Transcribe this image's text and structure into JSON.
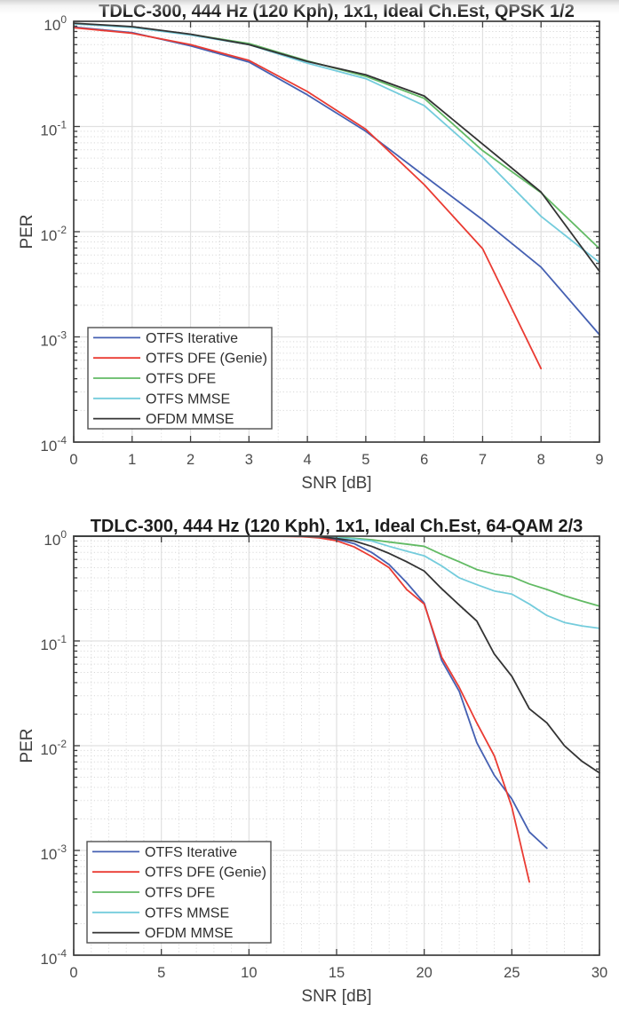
{
  "page": {
    "background": "#ffffff",
    "top_shade_color": "#c6c6c6"
  },
  "style": {
    "axis_color": "#3e3e3e",
    "grid_major_color": "#e0e0e0",
    "grid_minor_color": "#d9d9d9",
    "tick_label_color": "#4b4b4b",
    "axis_label_color": "#3f3f3f",
    "title_color": "#1c1c1c",
    "legend_border_color": "#4f4f4f",
    "legend_text_color": "#2e2e2e",
    "legend_background": "#ffffff"
  },
  "chart_data": [
    {
      "type": "line",
      "title": "TDLC-300, 444 Hz (120 Kph), 1x1, Ideal Ch.Est, QPSK 1/2",
      "xlabel": "SNR [dB]",
      "ylabel": "PER",
      "x_range": [
        0,
        9
      ],
      "x_ticks": [
        0,
        1,
        2,
        3,
        4,
        5,
        6,
        7,
        8,
        9
      ],
      "x_tick_labels": [
        "0",
        "1",
        "2",
        "3",
        "4",
        "5",
        "6",
        "7",
        "8",
        "9"
      ],
      "x_minor_step": 0.5,
      "y_scale": "log",
      "y_range": [
        0.0001,
        1
      ],
      "y_tick_exponents": [
        0,
        -1,
        -2,
        -3,
        -4
      ],
      "grid": {
        "x_major": true,
        "y_major": true,
        "x_minor": true,
        "y_minor": true
      },
      "legend_position": "bottom-left",
      "series": [
        {
          "name": "OTFS Iterative",
          "color": "#4560b2",
          "x": [
            0,
            1,
            2,
            3,
            4,
            5,
            6,
            7,
            8,
            9
          ],
          "y": [
            0.88,
            0.78,
            0.585,
            0.41,
            0.2,
            0.09,
            0.034,
            0.013,
            0.0046,
            0.00105
          ]
        },
        {
          "name": "OTFS DFE (Genie)",
          "color": "#ea3b32",
          "x": [
            0,
            1,
            2,
            3,
            4,
            5,
            6,
            7,
            8
          ],
          "y": [
            0.87,
            0.77,
            0.6,
            0.425,
            0.215,
            0.094,
            0.028,
            0.0069,
            0.0005
          ]
        },
        {
          "name": "OTFS DFE",
          "color": "#62ba64",
          "x": [
            0,
            1,
            2,
            3,
            4,
            5,
            6,
            7,
            8,
            9
          ],
          "y": [
            0.95,
            0.885,
            0.75,
            0.615,
            0.42,
            0.3,
            0.185,
            0.059,
            0.0235,
            0.0069
          ]
        },
        {
          "name": "OTFS MMSE",
          "color": "#74ccdc",
          "x": [
            0,
            1,
            2,
            3,
            4,
            5,
            6,
            7,
            8,
            9
          ],
          "y": [
            0.945,
            0.875,
            0.74,
            0.6,
            0.4,
            0.285,
            0.158,
            0.051,
            0.014,
            0.0051
          ]
        },
        {
          "name": "OFDM MMSE",
          "color": "#333333",
          "x": [
            0,
            1,
            2,
            3,
            4,
            5,
            6,
            7,
            8,
            9
          ],
          "y": [
            0.96,
            0.89,
            0.755,
            0.6,
            0.415,
            0.31,
            0.195,
            0.068,
            0.0238,
            0.0042
          ]
        }
      ]
    },
    {
      "type": "line",
      "title": "TDLC-300, 444 Hz (120 Kph), 1x1, Ideal Ch.Est, 64-QAM 2/3",
      "xlabel": "SNR [dB]",
      "ylabel": "PER",
      "x_range": [
        0,
        30
      ],
      "x_ticks": [
        0,
        5,
        10,
        15,
        20,
        25,
        30
      ],
      "x_tick_labels": [
        "0",
        "5",
        "10",
        "15",
        "20",
        "25",
        "30"
      ],
      "x_minor_step": 1,
      "y_scale": "log",
      "y_range": [
        0.0001,
        1
      ],
      "y_tick_exponents": [
        0,
        -1,
        -2,
        -3,
        -4
      ],
      "grid": {
        "x_major": true,
        "y_major": true,
        "x_minor": true,
        "y_minor": true
      },
      "legend_position": "bottom-left",
      "series": [
        {
          "name": "OTFS Iterative",
          "color": "#4560b2",
          "x": [
            0,
            2,
            4,
            6,
            8,
            10,
            12,
            13,
            14,
            15,
            16,
            17,
            18,
            19,
            20,
            21,
            22,
            23,
            24,
            25,
            26,
            27
          ],
          "y": [
            1,
            1,
            1,
            1,
            1,
            1,
            1,
            0.995,
            0.975,
            0.935,
            0.85,
            0.7,
            0.535,
            0.36,
            0.23,
            0.065,
            0.033,
            0.0107,
            0.0052,
            0.0031,
            0.0015,
            0.00105
          ]
        },
        {
          "name": "OTFS DFE (Genie)",
          "color": "#ea3b32",
          "x": [
            0,
            2,
            4,
            6,
            8,
            10,
            12,
            13,
            14,
            15,
            16,
            17,
            18,
            19,
            20,
            21,
            22,
            23,
            24,
            25,
            26
          ],
          "y": [
            1,
            1,
            1,
            1,
            1,
            1,
            0.995,
            0.99,
            0.965,
            0.905,
            0.79,
            0.64,
            0.5,
            0.31,
            0.225,
            0.07,
            0.036,
            0.0165,
            0.008,
            0.0026,
            0.0005
          ]
        },
        {
          "name": "OTFS DFE",
          "color": "#62ba64",
          "x": [
            0,
            2,
            4,
            6,
            8,
            10,
            12,
            13,
            14,
            15,
            16,
            17,
            18,
            19,
            20,
            21,
            22,
            23,
            24,
            25,
            26,
            27,
            28,
            29,
            30
          ],
          "y": [
            1,
            1,
            1,
            1,
            1,
            1,
            1,
            1,
            0.99,
            0.975,
            0.955,
            0.925,
            0.88,
            0.84,
            0.8,
            0.67,
            0.57,
            0.48,
            0.435,
            0.41,
            0.35,
            0.31,
            0.27,
            0.24,
            0.215
          ]
        },
        {
          "name": "OTFS MMSE",
          "color": "#74ccdc",
          "x": [
            0,
            2,
            4,
            6,
            8,
            10,
            12,
            13,
            14,
            15,
            16,
            17,
            18,
            19,
            20,
            21,
            22,
            23,
            24,
            25,
            26,
            27,
            28,
            29,
            30
          ],
          "y": [
            1,
            1,
            1,
            1,
            1,
            1,
            1,
            1,
            0.985,
            0.965,
            0.94,
            0.9,
            0.8,
            0.72,
            0.65,
            0.52,
            0.4,
            0.345,
            0.3,
            0.28,
            0.225,
            0.175,
            0.15,
            0.139,
            0.132
          ]
        },
        {
          "name": "OFDM MMSE",
          "color": "#333333",
          "x": [
            0,
            2,
            4,
            6,
            8,
            10,
            12,
            13,
            14,
            15,
            16,
            17,
            18,
            19,
            20,
            21,
            22,
            23,
            24,
            25,
            26,
            27,
            28,
            29,
            30
          ],
          "y": [
            1,
            1,
            1,
            1,
            1,
            1,
            1,
            1,
            0.99,
            0.95,
            0.9,
            0.8,
            0.685,
            0.57,
            0.465,
            0.315,
            0.22,
            0.155,
            0.075,
            0.046,
            0.0225,
            0.0165,
            0.01,
            0.0071,
            0.0055
          ]
        }
      ]
    }
  ]
}
